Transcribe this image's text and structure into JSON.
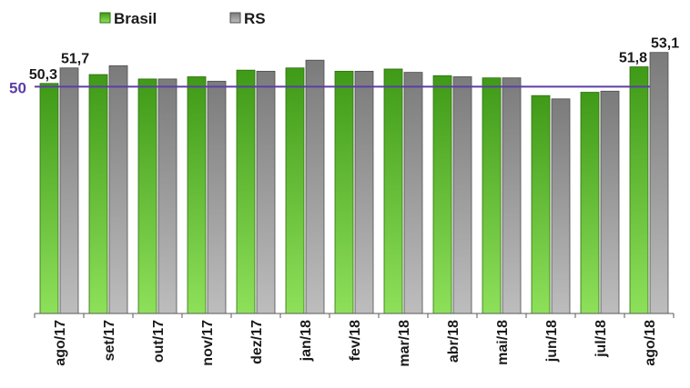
{
  "chart_data": {
    "type": "bar",
    "categories": [
      "ago/17",
      "set/17",
      "out/17",
      "nov/17",
      "dez/17",
      "jan/18",
      "fev/18",
      "mar/18",
      "abr/18",
      "mai/18",
      "jun/18",
      "jul/18",
      "ago/18"
    ],
    "series": [
      {
        "name": "Brasil",
        "color": "#4caf1f",
        "values": [
          50.3,
          51.1,
          50.7,
          50.9,
          51.5,
          51.7,
          51.4,
          51.6,
          51.0,
          50.8,
          49.2,
          49.5,
          51.8
        ]
      },
      {
        "name": "RS",
        "color": "#8a8a8a",
        "values": [
          51.7,
          51.9,
          50.7,
          50.5,
          51.4,
          52.4,
          51.4,
          51.3,
          50.9,
          50.8,
          48.9,
          49.6,
          53.1
        ]
      }
    ],
    "data_labels": [
      {
        "category": "ago/17",
        "series": "Brasil",
        "text": "50,3"
      },
      {
        "category": "ago/17",
        "series": "RS",
        "text": "51,7"
      },
      {
        "category": "ago/18",
        "series": "Brasil",
        "text": "51,8"
      },
      {
        "category": "ago/18",
        "series": "RS",
        "text": "53,1"
      }
    ],
    "reference_line": {
      "value": 50,
      "label": "50",
      "color": "#5b3ea6"
    },
    "legend_position": "top-left",
    "grid": false,
    "ylim": [
      29.5,
      54.8
    ]
  }
}
